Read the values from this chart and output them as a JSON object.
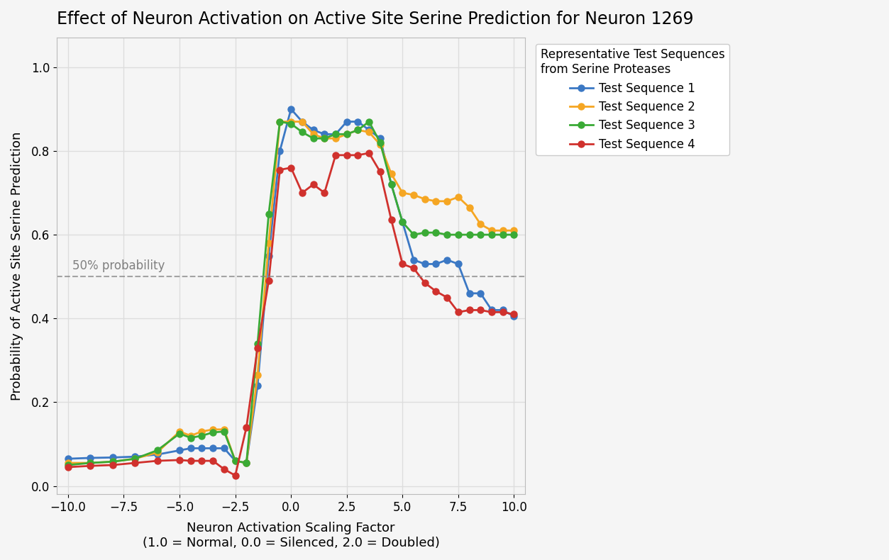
{
  "title": "Effect of Neuron Activation on Active Site Serine Prediction for Neuron 1269",
  "xlabel": "Neuron Activation Scaling Factor\n(1.0 = Normal, 0.0 = Silenced, 2.0 = Doubled)",
  "ylabel": "Probability of Active Site Serine Prediction",
  "legend_title": "Representative Test Sequences\nfrom Serine Proteases",
  "legend_labels": [
    "Test Sequence 1",
    "Test Sequence 2",
    "Test Sequence 3",
    "Test Sequence 4"
  ],
  "colors": [
    "#3b78c4",
    "#f5a623",
    "#3aaa35",
    "#d0312d"
  ],
  "x_values": [
    -10,
    -9,
    -8,
    -7,
    -6,
    -5,
    -4.5,
    -4,
    -3.5,
    -3,
    -2.5,
    -2,
    -1.5,
    -1,
    -0.5,
    0,
    0.5,
    1,
    1.5,
    2,
    2.5,
    3,
    3.5,
    4,
    4.5,
    5,
    5.5,
    6,
    6.5,
    7,
    7.5,
    8,
    8.5,
    9,
    9.5,
    10
  ],
  "seq1": [
    0.065,
    0.067,
    0.068,
    0.07,
    0.075,
    0.085,
    0.09,
    0.09,
    0.09,
    0.09,
    0.06,
    0.055,
    0.24,
    0.55,
    0.8,
    0.9,
    0.87,
    0.85,
    0.84,
    0.84,
    0.87,
    0.87,
    0.85,
    0.83,
    0.72,
    0.63,
    0.54,
    0.53,
    0.53,
    0.54,
    0.53,
    0.46,
    0.46,
    0.42,
    0.42,
    0.405
  ],
  "seq2": [
    0.055,
    0.055,
    0.058,
    0.065,
    0.08,
    0.13,
    0.12,
    0.13,
    0.135,
    0.135,
    0.06,
    0.055,
    0.265,
    0.58,
    0.87,
    0.87,
    0.87,
    0.84,
    0.83,
    0.83,
    0.84,
    0.85,
    0.845,
    0.815,
    0.745,
    0.7,
    0.695,
    0.685,
    0.68,
    0.68,
    0.69,
    0.665,
    0.625,
    0.61,
    0.61,
    0.61
  ],
  "seq3": [
    0.05,
    0.055,
    0.058,
    0.065,
    0.085,
    0.125,
    0.115,
    0.12,
    0.128,
    0.13,
    0.06,
    0.055,
    0.34,
    0.65,
    0.87,
    0.865,
    0.845,
    0.83,
    0.83,
    0.84,
    0.84,
    0.85,
    0.87,
    0.82,
    0.72,
    0.63,
    0.6,
    0.605,
    0.605,
    0.6,
    0.6,
    0.6,
    0.6,
    0.6,
    0.6,
    0.6
  ],
  "seq4": [
    0.045,
    0.048,
    0.05,
    0.055,
    0.06,
    0.062,
    0.06,
    0.06,
    0.06,
    0.04,
    0.025,
    0.14,
    0.33,
    0.49,
    0.755,
    0.76,
    0.7,
    0.72,
    0.7,
    0.79,
    0.79,
    0.79,
    0.795,
    0.75,
    0.635,
    0.53,
    0.52,
    0.485,
    0.465,
    0.45,
    0.415,
    0.42,
    0.42,
    0.415,
    0.415,
    0.41
  ],
  "hline_y": 0.5,
  "hline_label": "50% probability",
  "ylim": [
    -0.02,
    1.07
  ],
  "xlim": [
    -10.5,
    10.5
  ],
  "background_color": "#f5f5f5",
  "grid_color": "#dddddd",
  "title_fontsize": 17,
  "label_fontsize": 13,
  "tick_fontsize": 12,
  "legend_fontsize": 12
}
